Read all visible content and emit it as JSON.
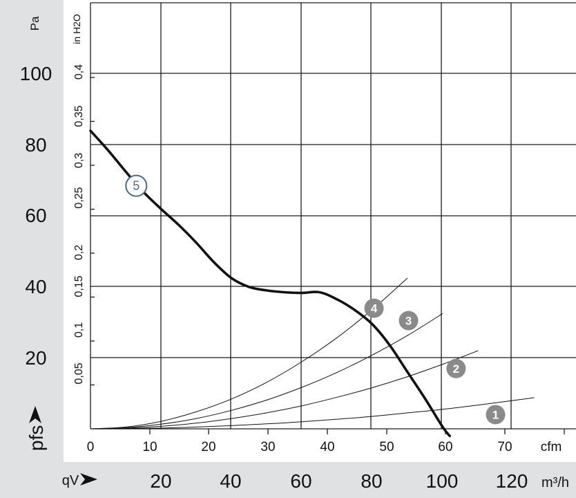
{
  "colors": {
    "band": "#e0e1e3",
    "grid": "#1a1a1a",
    "curve": "#111111",
    "marker_fill": "#8a8a8a",
    "marker_text": "#ffffff",
    "curve5_marker_stroke": "#4a6a8a",
    "curve5_marker_fill": "#ffffff"
  },
  "chart_data": {
    "type": "line",
    "grid": true,
    "y_left": {
      "unit": "Pa",
      "ticks": [
        "100",
        "80",
        "60",
        "40",
        "20"
      ],
      "range": [
        0,
        120
      ]
    },
    "y_inner": {
      "unit": "in H2O",
      "ticks": [
        "0,05",
        "0,1",
        "0,15",
        "0,2",
        "0,25",
        "0,3",
        "0,35",
        "0,4"
      ]
    },
    "x_top": {
      "unit": "cfm",
      "ticks": [
        "0",
        "10",
        "20",
        "30",
        "40",
        "50",
        "60",
        "70"
      ],
      "range": [
        0,
        70
      ]
    },
    "x_bottom": {
      "unit": "m³/h",
      "ticks": [
        "20",
        "40",
        "60",
        "80",
        "100",
        "120"
      ],
      "range": [
        0,
        140
      ]
    },
    "ylabel": "pfs",
    "xlabel": "qV",
    "performance_curve": {
      "label": "5",
      "x_m3h": [
        0,
        5,
        10,
        15,
        20,
        25,
        30,
        35,
        40,
        45,
        50,
        55,
        60,
        65,
        70,
        75,
        80,
        85,
        90,
        95,
        100,
        102
      ],
      "y_pa": [
        84,
        78.5,
        72.5,
        66.8,
        62,
        57.5,
        52.5,
        47,
        42.5,
        40,
        39,
        38.5,
        38.3,
        38.5,
        36.5,
        33.5,
        29.5,
        23.5,
        16,
        8.5,
        0.5,
        -2
      ]
    },
    "system_curves": [
      {
        "label": "4",
        "x_m3h": [
          0,
          10,
          20,
          30,
          40,
          50,
          60,
          70,
          80,
          90
        ],
        "y_pa": [
          0,
          0.5,
          2.1,
          4.8,
          8.4,
          13.1,
          18.9,
          25.7,
          33.6,
          42.5
        ]
      },
      {
        "label": "3",
        "x_m3h": [
          0,
          10,
          20,
          30,
          40,
          50,
          60,
          70,
          80,
          90,
          100
        ],
        "y_pa": [
          0,
          0.3,
          1.3,
          2.9,
          5.2,
          8.1,
          11.7,
          15.9,
          20.8,
          26.3,
          32.5
        ]
      },
      {
        "label": "2",
        "x_m3h": [
          0,
          10,
          20,
          30,
          40,
          50,
          60,
          70,
          80,
          90,
          100,
          110
        ],
        "y_pa": [
          0,
          0.2,
          0.7,
          1.6,
          2.9,
          4.5,
          6.5,
          8.9,
          11.6,
          14.7,
          18.2,
          22
        ]
      },
      {
        "label": "1",
        "x_m3h": [
          0,
          10,
          20,
          30,
          40,
          50,
          60,
          70,
          80,
          90,
          100,
          110,
          120,
          126
        ],
        "y_pa": [
          0,
          0.1,
          0.2,
          0.5,
          0.9,
          1.4,
          2.0,
          2.7,
          3.5,
          4.5,
          5.5,
          6.7,
          8.0,
          8.8
        ]
      }
    ],
    "markers": [
      {
        "label": "5",
        "x_m3h": 13.0,
        "y_pa": 68.5,
        "style": "outline"
      },
      {
        "label": "4",
        "x_m3h": 80.5,
        "y_pa": 34.0,
        "style": "filled"
      },
      {
        "label": "3",
        "x_m3h": 90.3,
        "y_pa": 30.5,
        "style": "filled"
      },
      {
        "label": "2",
        "x_m3h": 103.8,
        "y_pa": 17.0,
        "style": "filled"
      },
      {
        "label": "1",
        "x_m3h": 115.0,
        "y_pa": 4.0,
        "style": "filled"
      }
    ]
  }
}
